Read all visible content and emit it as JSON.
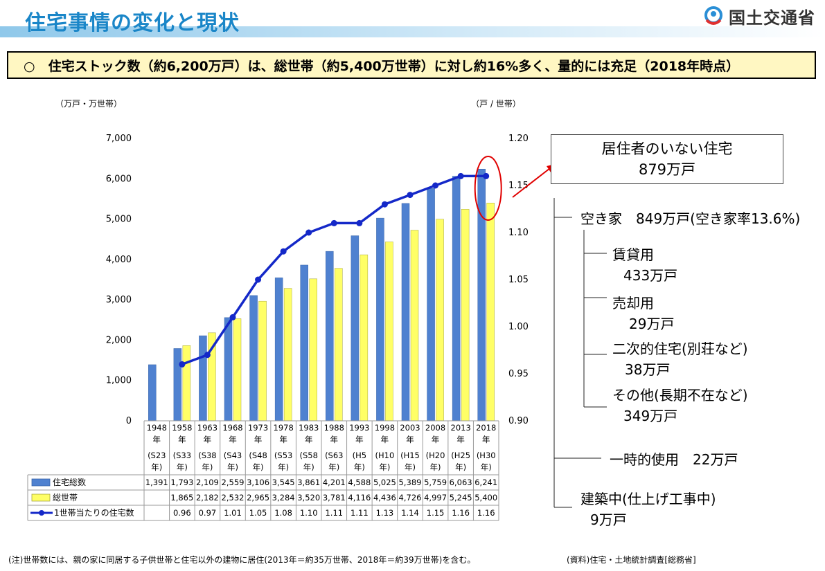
{
  "page": {
    "title": "住宅事情の変化と現状",
    "logo_text": "国土交通省",
    "summary": "○　住宅ストック数（約6,200万戸）は、総世帯（約5,400万世帯）に対し約16%多く、量的には充足（2018年時点）",
    "footnote": "(注)世帯数には、親の家に同居する子供世帯と住宅以外の建物に居住(2013年＝約35万世帯、2018年＝約39万世帯)を含む。",
    "source": "(資料)住宅・土地統計調査[総務省]"
  },
  "colors": {
    "bar_housing": "#4f81d0",
    "bar_households": "#ffff66",
    "line": "#1428c8",
    "highlight_ellipse": "#e00000",
    "title_blue": "#1a86c8"
  },
  "chart_data": {
    "type": "bar",
    "left_axis_label": "（万戸・万世帯）",
    "right_axis_label": "（戸 / 世帯）",
    "left_ylim": [
      0,
      7000
    ],
    "left_ticks": [
      "0",
      "1,000",
      "2,000",
      "3,000",
      "4,000",
      "5,000",
      "6,000",
      "7,000"
    ],
    "right_ylim": [
      0.9,
      1.2
    ],
    "right_ticks": [
      "0.90",
      "0.95",
      "1.00",
      "1.05",
      "1.10",
      "1.15",
      "1.20"
    ],
    "categories": [
      {
        "year": "1948",
        "era": "(S23"
      },
      {
        "year": "1958",
        "era": "(S33"
      },
      {
        "year": "1963",
        "era": "(S38"
      },
      {
        "year": "1968",
        "era": "(S43"
      },
      {
        "year": "1973",
        "era": "(S48"
      },
      {
        "year": "1978",
        "era": "(S53"
      },
      {
        "year": "1983",
        "era": "(S58"
      },
      {
        "year": "1988",
        "era": "(S63"
      },
      {
        "year": "1993",
        "era": "(H5"
      },
      {
        "year": "1998",
        "era": "(H10"
      },
      {
        "year": "2003",
        "era": "(H15"
      },
      {
        "year": "2008",
        "era": "(H20"
      },
      {
        "year": "2013",
        "era": "(H25"
      },
      {
        "year": "2018",
        "era": "(H30"
      }
    ],
    "year_suffix": "年",
    "era_suffix": "年)",
    "series": [
      {
        "name": "住宅総数",
        "axis": "left",
        "kind": "bar",
        "values": [
          1391,
          1793,
          2109,
          2559,
          3106,
          3545,
          3861,
          4201,
          4588,
          5025,
          5389,
          5759,
          6063,
          6241
        ],
        "labels": [
          "1,391",
          "1,793",
          "2,109",
          "2,559",
          "3,106",
          "3,545",
          "3,861",
          "4,201",
          "4,588",
          "5,025",
          "5,389",
          "5,759",
          "6,063",
          "6,241"
        ]
      },
      {
        "name": "総世帯",
        "axis": "left",
        "kind": "bar",
        "values": [
          null,
          1865,
          2182,
          2532,
          2965,
          3284,
          3520,
          3781,
          4116,
          4436,
          4726,
          4997,
          5245,
          5400
        ],
        "labels": [
          "",
          "1,865",
          "2,182",
          "2,532",
          "2,965",
          "3,284",
          "3,520",
          "3,781",
          "4,116",
          "4,436",
          "4,726",
          "4,997",
          "5,245",
          "5,400"
        ]
      },
      {
        "name": "1世帯当たりの住宅数",
        "axis": "right",
        "kind": "line",
        "values": [
          null,
          0.96,
          0.97,
          1.01,
          1.05,
          1.08,
          1.1,
          1.11,
          1.11,
          1.13,
          1.14,
          1.15,
          1.16,
          1.16
        ],
        "labels": [
          "",
          "0.96",
          "0.97",
          "1.01",
          "1.05",
          "1.08",
          "1.10",
          "1.11",
          "1.11",
          "1.13",
          "1.14",
          "1.15",
          "1.16",
          "1.16"
        ]
      }
    ]
  },
  "callout": {
    "line1": "居住者のいない住宅",
    "line2": "879万戸"
  },
  "breakdown": {
    "vacant": "空き家　849万戸(空き家率13.6%)",
    "rental_label": "賃貸用",
    "rental_value": "433万戸",
    "sale_label": "売却用",
    "sale_value": "29万戸",
    "secondary_label": "二次的住宅(別荘など)",
    "secondary_value": "38万戸",
    "other_label": "その他(長期不在など)",
    "other_value": "349万戸",
    "temporary": "一時的使用　22万戸",
    "construction_label": "建築中(仕上げ工事中)",
    "construction_value": "9万戸"
  }
}
